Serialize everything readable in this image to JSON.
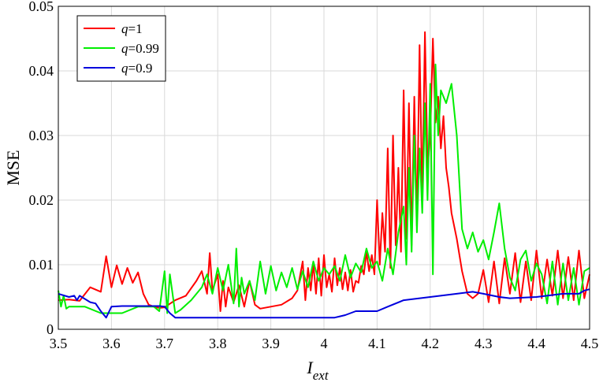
{
  "chart_data": {
    "type": "line",
    "title": "",
    "xlabel": "I",
    "xlabel_sub": "ext",
    "ylabel": "MSE",
    "xlim": [
      3.5,
      4.5
    ],
    "ylim": [
      0,
      0.05
    ],
    "xticks": [
      3.5,
      3.6,
      3.7,
      3.8,
      3.9,
      4.0,
      4.1,
      4.2,
      4.3,
      4.4,
      4.5
    ],
    "xtick_labels": [
      "3.5",
      "3.6",
      "3.7",
      "3.8",
      "3.9",
      "4",
      "4.1",
      "4.2",
      "4.3",
      "4.4",
      "4.5"
    ],
    "yticks": [
      0,
      0.01,
      0.02,
      0.03,
      0.04,
      0.05
    ],
    "ytick_labels": [
      "0",
      "0.01",
      "0.02",
      "0.03",
      "0.04",
      "0.05"
    ],
    "grid": true,
    "legend_position": "top-left",
    "series": [
      {
        "name": "q=1",
        "legend_var": "q",
        "legend_val": "=1",
        "color": "#ff0000",
        "x": [
          3.5,
          3.52,
          3.54,
          3.56,
          3.58,
          3.59,
          3.6,
          3.61,
          3.62,
          3.63,
          3.64,
          3.65,
          3.66,
          3.67,
          3.68,
          3.69,
          3.7,
          3.72,
          3.74,
          3.76,
          3.77,
          3.78,
          3.785,
          3.79,
          3.8,
          3.805,
          3.81,
          3.815,
          3.82,
          3.83,
          3.84,
          3.85,
          3.86,
          3.87,
          3.88,
          3.9,
          3.92,
          3.94,
          3.95,
          3.96,
          3.965,
          3.97,
          3.975,
          3.98,
          3.985,
          3.99,
          3.995,
          4.0,
          4.005,
          4.01,
          4.015,
          4.02,
          4.025,
          4.03,
          4.035,
          4.04,
          4.045,
          4.05,
          4.055,
          4.06,
          4.065,
          4.07,
          4.075,
          4.08,
          4.085,
          4.09,
          4.095,
          4.1,
          4.105,
          4.11,
          4.115,
          4.12,
          4.125,
          4.13,
          4.135,
          4.14,
          4.145,
          4.15,
          4.155,
          4.16,
          4.165,
          4.17,
          4.175,
          4.18,
          4.185,
          4.19,
          4.195,
          4.2,
          4.205,
          4.21,
          4.215,
          4.22,
          4.225,
          4.23,
          4.235,
          4.24,
          4.25,
          4.26,
          4.27,
          4.28,
          4.29,
          4.3,
          4.31,
          4.32,
          4.33,
          4.34,
          4.35,
          4.36,
          4.37,
          4.38,
          4.39,
          4.4,
          4.41,
          4.42,
          4.43,
          4.44,
          4.45,
          4.46,
          4.47,
          4.48,
          4.49,
          4.5
        ],
        "y": [
          0.0045,
          0.0046,
          0.0044,
          0.0065,
          0.0058,
          0.0113,
          0.0065,
          0.0099,
          0.007,
          0.0095,
          0.0072,
          0.0088,
          0.0055,
          0.0038,
          0.0035,
          0.0033,
          0.0034,
          0.0045,
          0.0052,
          0.0075,
          0.009,
          0.0055,
          0.0118,
          0.006,
          0.0085,
          0.0028,
          0.0075,
          0.0035,
          0.0065,
          0.0042,
          0.0068,
          0.0035,
          0.0075,
          0.0038,
          0.0032,
          0.0035,
          0.0038,
          0.0048,
          0.006,
          0.0105,
          0.0045,
          0.0095,
          0.006,
          0.0102,
          0.0055,
          0.011,
          0.0052,
          0.0115,
          0.0065,
          0.0085,
          0.0058,
          0.011,
          0.0068,
          0.0095,
          0.0062,
          0.0088,
          0.006,
          0.0092,
          0.0058,
          0.0075,
          0.0072,
          0.0098,
          0.0085,
          0.012,
          0.009,
          0.0115,
          0.0085,
          0.02,
          0.01,
          0.018,
          0.012,
          0.028,
          0.0095,
          0.03,
          0.013,
          0.025,
          0.012,
          0.037,
          0.014,
          0.035,
          0.013,
          0.036,
          0.016,
          0.044,
          0.02,
          0.046,
          0.025,
          0.03,
          0.045,
          0.032,
          0.036,
          0.028,
          0.033,
          0.025,
          0.022,
          0.018,
          0.014,
          0.009,
          0.0055,
          0.0048,
          0.0055,
          0.0092,
          0.0042,
          0.0105,
          0.004,
          0.011,
          0.0055,
          0.0118,
          0.0042,
          0.0105,
          0.0045,
          0.0122,
          0.0048,
          0.0108,
          0.0052,
          0.0122,
          0.0048,
          0.0112,
          0.0045,
          0.0122,
          0.0048,
          0.0085
        ]
      },
      {
        "name": "q=0.99",
        "legend_var": "q",
        "legend_val": "=0.99",
        "color": "#00ee00",
        "x": [
          3.5,
          3.505,
          3.51,
          3.515,
          3.52,
          3.53,
          3.55,
          3.58,
          3.6,
          3.62,
          3.65,
          3.68,
          3.69,
          3.7,
          3.705,
          3.71,
          3.72,
          3.73,
          3.75,
          3.77,
          3.78,
          3.79,
          3.8,
          3.81,
          3.82,
          3.83,
          3.835,
          3.84,
          3.845,
          3.85,
          3.86,
          3.87,
          3.88,
          3.89,
          3.9,
          3.91,
          3.92,
          3.93,
          3.94,
          3.95,
          3.96,
          3.97,
          3.98,
          3.99,
          4.0,
          4.01,
          4.02,
          4.03,
          4.04,
          4.05,
          4.06,
          4.07,
          4.08,
          4.09,
          4.1,
          4.11,
          4.12,
          4.13,
          4.14,
          4.15,
          4.155,
          4.16,
          4.165,
          4.17,
          4.175,
          4.18,
          4.185,
          4.19,
          4.195,
          4.2,
          4.205,
          4.21,
          4.215,
          4.22,
          4.23,
          4.24,
          4.25,
          4.26,
          4.27,
          4.28,
          4.29,
          4.3,
          4.31,
          4.32,
          4.33,
          4.34,
          4.35,
          4.36,
          4.37,
          4.38,
          4.39,
          4.4,
          4.41,
          4.42,
          4.43,
          4.44,
          4.45,
          4.46,
          4.47,
          4.48,
          4.49,
          4.5
        ],
        "y": [
          0.006,
          0.0035,
          0.0052,
          0.0032,
          0.0035,
          0.0035,
          0.0035,
          0.0025,
          0.0025,
          0.0025,
          0.0035,
          0.0035,
          0.0028,
          0.009,
          0.0025,
          0.0085,
          0.0025,
          0.003,
          0.0045,
          0.0065,
          0.0085,
          0.0055,
          0.0095,
          0.006,
          0.01,
          0.004,
          0.0125,
          0.0035,
          0.008,
          0.0055,
          0.0075,
          0.0045,
          0.0105,
          0.0055,
          0.0098,
          0.006,
          0.0088,
          0.0065,
          0.0095,
          0.0062,
          0.009,
          0.0065,
          0.0105,
          0.0075,
          0.0095,
          0.0085,
          0.0098,
          0.0075,
          0.0115,
          0.008,
          0.0102,
          0.0088,
          0.0125,
          0.0095,
          0.0105,
          0.0075,
          0.0125,
          0.0085,
          0.015,
          0.019,
          0.01,
          0.025,
          0.012,
          0.03,
          0.015,
          0.028,
          0.018,
          0.035,
          0.02,
          0.038,
          0.0085,
          0.041,
          0.03,
          0.037,
          0.035,
          0.038,
          0.03,
          0.0155,
          0.0125,
          0.015,
          0.012,
          0.0138,
          0.0108,
          0.015,
          0.0195,
          0.0125,
          0.008,
          0.006,
          0.0108,
          0.0122,
          0.0075,
          0.0102,
          0.0085,
          0.004,
          0.0105,
          0.0038,
          0.0102,
          0.0045,
          0.0095,
          0.0038,
          0.009,
          0.0095
        ]
      },
      {
        "name": "q=0.9",
        "legend_var": "q",
        "legend_val": "=0.9",
        "color": "#0000dd",
        "x": [
          3.5,
          3.52,
          3.53,
          3.535,
          3.54,
          3.56,
          3.57,
          3.58,
          3.59,
          3.6,
          3.62,
          3.65,
          3.69,
          3.7,
          3.71,
          3.72,
          3.75,
          3.8,
          3.85,
          3.9,
          3.95,
          4.0,
          4.02,
          4.03,
          4.04,
          4.05,
          4.06,
          4.08,
          4.1,
          4.12,
          4.15,
          4.2,
          4.25,
          4.28,
          4.3,
          4.33,
          4.35,
          4.4,
          4.45,
          4.48,
          4.49,
          4.5
        ],
        "y": [
          0.0055,
          0.005,
          0.0052,
          0.0045,
          0.0052,
          0.0042,
          0.004,
          0.0028,
          0.0018,
          0.0035,
          0.0036,
          0.0036,
          0.0036,
          0.0035,
          0.0025,
          0.0018,
          0.0018,
          0.0018,
          0.0018,
          0.0018,
          0.0018,
          0.0018,
          0.0018,
          0.002,
          0.0022,
          0.0025,
          0.0028,
          0.0028,
          0.0028,
          0.0035,
          0.0045,
          0.005,
          0.0055,
          0.0058,
          0.0055,
          0.005,
          0.0048,
          0.005,
          0.0055,
          0.0055,
          0.006,
          0.0062
        ]
      }
    ]
  }
}
